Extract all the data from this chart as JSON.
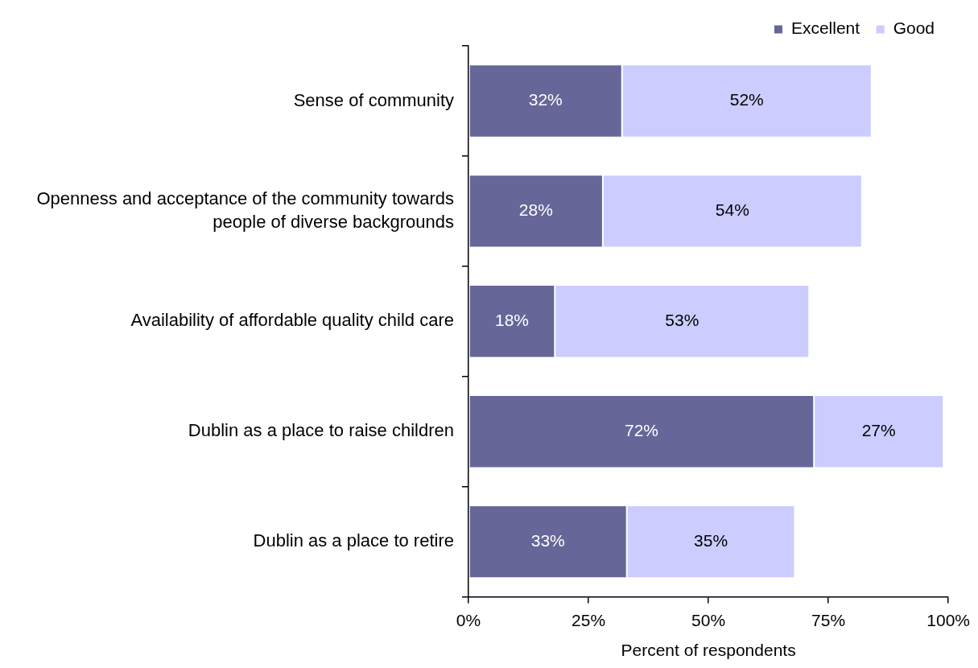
{
  "chart_data": {
    "type": "bar",
    "orientation": "horizontal",
    "stacked": true,
    "categories": [
      "Sense of community",
      "Openness and acceptance of the community towards people of diverse backgrounds",
      "Availability of affordable quality child care",
      "Dublin as a place to raise children",
      "Dublin as a place to retire"
    ],
    "series": [
      {
        "name": "Excellent",
        "color": "#666699",
        "values": [
          32,
          28,
          18,
          72,
          33
        ],
        "value_labels": [
          "32%",
          "28%",
          "18%",
          "72%",
          "33%"
        ]
      },
      {
        "name": "Good",
        "color": "#ccccff",
        "values": [
          52,
          54,
          53,
          27,
          35
        ],
        "value_labels": [
          "52%",
          "54%",
          "53%",
          "27%",
          "35%"
        ]
      }
    ],
    "xlabel": "Percent of respondents",
    "xlim": [
      0,
      100
    ],
    "xticks": [
      {
        "value": 0,
        "label": "0%"
      },
      {
        "value": 25,
        "label": "25%"
      },
      {
        "value": 50,
        "label": "50%"
      },
      {
        "value": 75,
        "label": "75%"
      },
      {
        "value": 100,
        "label": "100%"
      }
    ],
    "legend": "top right"
  }
}
